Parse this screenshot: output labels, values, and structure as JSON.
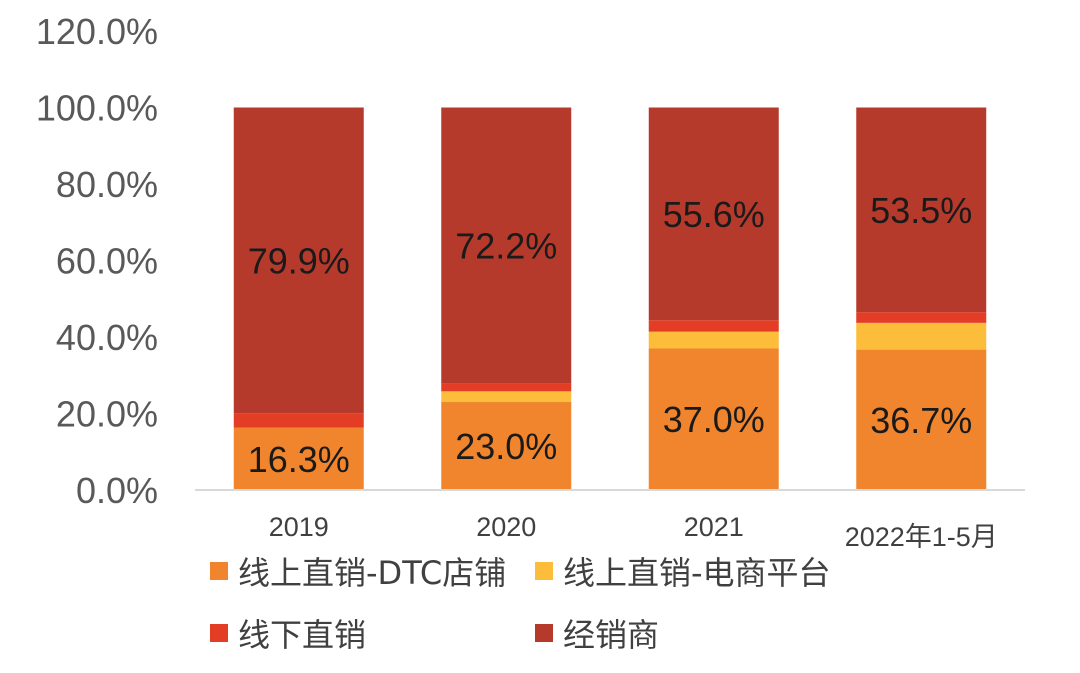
{
  "chart_data": {
    "type": "bar",
    "stacked": true,
    "categories": [
      "2019",
      "2020",
      "2021",
      "2022年1-5月"
    ],
    "series": [
      {
        "name": "线上直销-DTC店铺",
        "color": "#F0852D",
        "values": [
          16.3,
          23.0,
          37.0,
          36.7
        ],
        "labels": [
          "16.3%",
          "23.0%",
          "37.0%",
          "36.7%"
        ]
      },
      {
        "name": "线上直销-电商平台",
        "color": "#FBBD3A",
        "values": [
          0.0,
          2.8,
          4.4,
          7.0
        ],
        "labels": [
          "",
          "",
          "",
          ""
        ]
      },
      {
        "name": "线下直销",
        "color": "#E43D26",
        "values": [
          3.8,
          2.0,
          3.0,
          2.8
        ],
        "labels": [
          "",
          "",
          "",
          ""
        ]
      },
      {
        "name": "经销商",
        "color": "#B53A2C",
        "values": [
          79.9,
          72.2,
          55.6,
          53.5
        ],
        "labels": [
          "79.9%",
          "72.2%",
          "55.6%",
          "53.5%"
        ]
      }
    ],
    "yticks": [
      "0.0%",
      "20.0%",
      "40.0%",
      "60.0%",
      "80.0%",
      "100.0%",
      "120.0%"
    ],
    "ylim": [
      0,
      120
    ],
    "grid": false,
    "legend_position": "bottom",
    "title": "",
    "xlabel": "",
    "ylabel": ""
  }
}
